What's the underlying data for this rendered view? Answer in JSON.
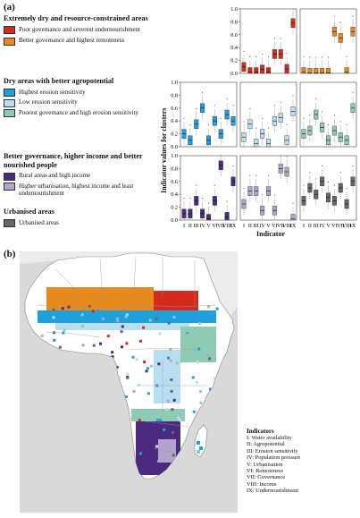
{
  "panel_a": "(a)",
  "panel_b": "(b)",
  "groups": [
    {
      "title": "Extremely dry and resource-constrained areas",
      "items": [
        {
          "label": "Poor governance and severest undernourishment",
          "color": "#d52b1e"
        },
        {
          "label": "Better governance and highest remoteness",
          "color": "#e8891e"
        }
      ]
    },
    {
      "title": "Dry areas with better agropotential",
      "items": [
        {
          "label": "Highest erosion sensitivity",
          "color": "#1ea0dc"
        },
        {
          "label": "Low erosion sensitivity",
          "color": "#b9def0"
        },
        {
          "label": "Poorest governance and high erosion sensitivity",
          "color": "#8fcbb4"
        }
      ]
    },
    {
      "title": "Better governance, higher income and better nourished people",
      "items": [
        {
          "label": "Rural areas and high income",
          "color": "#4b2a7f"
        },
        {
          "label": "Higher urbanisation, highest income and least undernourishment",
          "color": "#b3a3cc"
        }
      ]
    },
    {
      "title": "Urbanised areas",
      "items": [
        {
          "label": "Urbanised areas",
          "color": "#666666"
        }
      ]
    }
  ],
  "chart_data": {
    "type": "box",
    "ylabel": "Indicator values for clusters",
    "xlabel": "Indicator",
    "ylim": [
      0,
      1.0
    ],
    "yticks": [
      "0.0",
      "0.2",
      "0.4",
      "0.6",
      "0.8",
      "1.0"
    ],
    "categories": [
      "I",
      "II",
      "III",
      "IV",
      "V",
      "VI",
      "VII",
      "VIII",
      "IX"
    ],
    "panels": [
      {
        "row": 0,
        "col": 1,
        "color": "#d52b1e",
        "medians": [
          0.1,
          0.02,
          0.02,
          0.06,
          0.02,
          0.3,
          0.3,
          0.07,
          0.78
        ]
      },
      {
        "row": 0,
        "col": 2,
        "color": "#e8891e",
        "medians": [
          0.02,
          0.01,
          0.01,
          0.01,
          0.01,
          0.65,
          0.55,
          0.02,
          0.65
        ]
      },
      {
        "row": 1,
        "col": 0,
        "color": "#1ea0dc",
        "medians": [
          0.2,
          0.1,
          0.35,
          0.6,
          0.1,
          0.4,
          0.2,
          0.5,
          0.4
        ]
      },
      {
        "row": 1,
        "col": 1,
        "color": "#b9def0",
        "medians": [
          0.15,
          0.35,
          0.05,
          0.2,
          0.05,
          0.4,
          0.45,
          0.1,
          0.55
        ]
      },
      {
        "row": 1,
        "col": 2,
        "color": "#8fcbb4",
        "medians": [
          0.2,
          0.25,
          0.5,
          0.3,
          0.1,
          0.25,
          0.15,
          0.1,
          0.6
        ]
      },
      {
        "row": 2,
        "col": 0,
        "color": "#4b2a7f",
        "medians": [
          0.1,
          0.1,
          0.3,
          0.1,
          0.02,
          0.3,
          0.85,
          0.05,
          0.6
        ]
      },
      {
        "row": 2,
        "col": 1,
        "color": "#b3a3cc",
        "medians": [
          0.25,
          0.45,
          0.45,
          0.15,
          0.45,
          0.15,
          0.8,
          0.75,
          0.02
        ]
      },
      {
        "row": 2,
        "col": 2,
        "color": "#666666",
        "medians": [
          0.3,
          0.5,
          0.4,
          0.6,
          0.35,
          0.3,
          0.5,
          0.25,
          0.6
        ]
      }
    ]
  },
  "indicators_title": "Indicators",
  "indicators": [
    "I: Water availability",
    "II: Agropotential",
    "III: Erosion sensitivity",
    "IV: Population pressure",
    "V: Urbanisation",
    "VI: Remoteness",
    "VII: Governance",
    "VIII: Income",
    "IX: Undernourishment"
  ]
}
